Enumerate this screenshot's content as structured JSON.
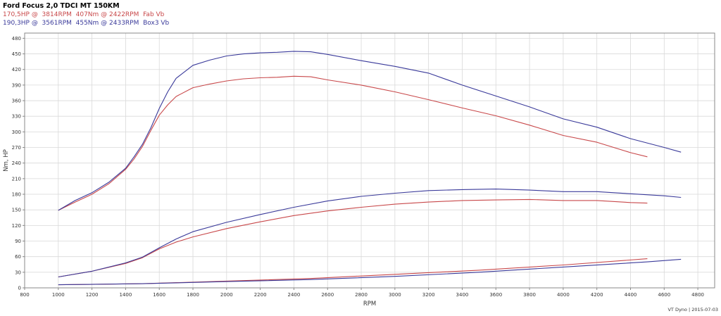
{
  "header": {
    "title": "Ford Focus 2,0 TDCI MT 150KM",
    "run_fab": "170,5HP @  3814RPM  407Nm @ 2422RPM  Fab Vb",
    "run_box": "190,3HP @  3561RPM  455Nm @ 2433RPM  Box3 Vb"
  },
  "footer": "VT Dyno | 2015-07-03",
  "colors": {
    "fab": "#c8484a",
    "box": "#3a3a9a",
    "grid": "#d9d9d9",
    "axis": "#888888"
  },
  "chart_data": {
    "type": "line",
    "xlabel": "RPM",
    "ylabel": "Nm, HP",
    "xlim": [
      800,
      4900
    ],
    "ylim": [
      0,
      490
    ],
    "xticks": [
      800,
      1000,
      1200,
      1400,
      1600,
      1800,
      2000,
      2200,
      2400,
      2600,
      2800,
      3000,
      3200,
      3400,
      3600,
      3800,
      4000,
      4200,
      4400,
      4600,
      4800
    ],
    "yticks": [
      0,
      30,
      60,
      90,
      120,
      150,
      180,
      210,
      240,
      270,
      300,
      330,
      360,
      390,
      420,
      450,
      480
    ],
    "grid": true,
    "series": [
      {
        "name": "Fab Vb",
        "kind": "torque",
        "color": "#c8484a",
        "x": [
          1000,
          1100,
          1200,
          1300,
          1400,
          1450,
          1500,
          1550,
          1600,
          1650,
          1700,
          1800,
          1900,
          2000,
          2100,
          2200,
          2300,
          2400,
          2500,
          2600,
          2800,
          3000,
          3200,
          3400,
          3600,
          3800,
          4000,
          4200,
          4400,
          4500
        ],
        "y": [
          149,
          165,
          180,
          200,
          228,
          248,
          272,
          303,
          332,
          352,
          368,
          385,
          392,
          398,
          402,
          404,
          405,
          407,
          406,
          400,
          390,
          377,
          362,
          346,
          331,
          313,
          293,
          280,
          260,
          252
        ]
      },
      {
        "name": "Box3 Vb",
        "kind": "torque",
        "color": "#3a3a9a",
        "x": [
          1000,
          1100,
          1200,
          1300,
          1400,
          1450,
          1500,
          1550,
          1600,
          1650,
          1700,
          1800,
          1900,
          2000,
          2100,
          2200,
          2300,
          2400,
          2500,
          2600,
          2800,
          3000,
          3200,
          3400,
          3600,
          3800,
          4000,
          4200,
          4400,
          4600,
          4700
        ],
        "y": [
          149,
          168,
          183,
          203,
          230,
          252,
          276,
          308,
          345,
          377,
          403,
          428,
          438,
          446,
          450,
          452,
          453,
          455,
          454,
          449,
          437,
          426,
          413,
          390,
          369,
          348,
          325,
          309,
          287,
          270,
          261
        ]
      },
      {
        "name": "Fab Vb",
        "kind": "power",
        "color": "#c8484a",
        "x": [
          1000,
          1200,
          1400,
          1500,
          1600,
          1700,
          1800,
          2000,
          2200,
          2400,
          2600,
          2800,
          3000,
          3200,
          3400,
          3600,
          3800,
          4000,
          4200,
          4400,
          4500
        ],
        "y": [
          21,
          32,
          47,
          58,
          75,
          88,
          98,
          114,
          127,
          139,
          148,
          155,
          161,
          165,
          168,
          169,
          170,
          168,
          168,
          164,
          163
        ]
      },
      {
        "name": "Box3 Vb",
        "kind": "power",
        "color": "#3a3a9a",
        "x": [
          1000,
          1200,
          1400,
          1500,
          1600,
          1700,
          1800,
          2000,
          2200,
          2400,
          2600,
          2800,
          3000,
          3200,
          3400,
          3600,
          3800,
          4000,
          4200,
          4400,
          4600,
          4700
        ],
        "y": [
          21,
          32,
          48,
          59,
          77,
          94,
          108,
          126,
          141,
          155,
          167,
          176,
          182,
          187,
          189,
          190,
          188,
          185,
          185,
          181,
          177,
          174
        ]
      },
      {
        "name": "Fab Vb",
        "kind": "loss",
        "color": "#c8484a",
        "x": [
          1000,
          1500,
          2000,
          2500,
          3000,
          3500,
          4000,
          4500
        ],
        "y": [
          6,
          8,
          13,
          18,
          26,
          34,
          44,
          56
        ]
      },
      {
        "name": "Box3 Vb",
        "kind": "loss",
        "color": "#3a3a9a",
        "x": [
          1000,
          1500,
          2000,
          2500,
          3000,
          3500,
          4000,
          4500,
          4700
        ],
        "y": [
          6,
          8,
          12,
          16,
          22,
          30,
          40,
          50,
          55
        ]
      }
    ]
  }
}
